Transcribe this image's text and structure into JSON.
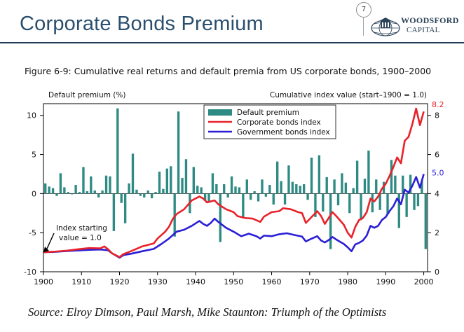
{
  "slide": {
    "title": "Corporate Bonds Premium",
    "page_number": "7",
    "logo": {
      "line1": "WOODSFORD",
      "line2": "CAPITAL",
      "icon": "globe-building-icon"
    },
    "source": "Source: Elroy Dimson, Paul Marsh, Mike Staunton: Triumph of the Optimists"
  },
  "colors": {
    "title": "#2a4f6e",
    "premium_bars": "#2e8b84",
    "corporate_line": "#e8222a",
    "government_line": "#2b1fd6",
    "label_82": "#e8222a",
    "label_50": "#2b1fd6"
  },
  "chart_data": {
    "type": "bar+line",
    "title": "Figure 6-9: Cumulative real returns and default premia from US corporate bonds, 1900–2000",
    "left_axis_label": "Default premium (%)",
    "right_axis_label": "Cumulative index value (start–1900 = 1.0)",
    "x_ticks": [
      "1900",
      "1910",
      "1920",
      "1930",
      "1940",
      "1950",
      "1960",
      "1970",
      "1980",
      "1990",
      "2000"
    ],
    "xlim": [
      1900,
      2001
    ],
    "left_ticks": [
      "10",
      "5",
      "0",
      "-5",
      "-10"
    ],
    "left_ylim": [
      -10,
      11.5
    ],
    "right_ticks": [
      "8",
      "6",
      "4",
      "2",
      "0"
    ],
    "right_ylim": [
      0,
      8.6
    ],
    "grid": false,
    "legend_position": "top-center",
    "legend": [
      "Default premium",
      "Corporate bonds index",
      "Government bonds index"
    ],
    "annotations": [
      {
        "lines": [
          "Index starting",
          "value = 1.0"
        ],
        "points_to_year": 1900,
        "points_to_value": 1.0
      },
      {
        "text": "8.2",
        "series": "Corporate bonds index",
        "year": 2000,
        "value": 8.2
      },
      {
        "text": "5.0",
        "series": "Government bonds index",
        "year": 2000,
        "value": 5.0
      }
    ],
    "premium": {
      "name": "Default premium",
      "years": [
        1900,
        1901,
        1902,
        1903,
        1904,
        1905,
        1906,
        1907,
        1908,
        1909,
        1910,
        1911,
        1912,
        1913,
        1914,
        1915,
        1916,
        1917,
        1918,
        1919,
        1920,
        1921,
        1922,
        1923,
        1924,
        1925,
        1926,
        1927,
        1928,
        1929,
        1930,
        1931,
        1932,
        1933,
        1934,
        1935,
        1936,
        1937,
        1938,
        1939,
        1940,
        1941,
        1942,
        1943,
        1944,
        1945,
        1946,
        1947,
        1948,
        1949,
        1950,
        1951,
        1952,
        1953,
        1954,
        1955,
        1956,
        1957,
        1958,
        1959,
        1960,
        1961,
        1962,
        1963,
        1964,
        1965,
        1966,
        1967,
        1968,
        1969,
        1970,
        1971,
        1972,
        1973,
        1974,
        1975,
        1976,
        1977,
        1978,
        1979,
        1980,
        1981,
        1982,
        1983,
        1984,
        1985,
        1986,
        1987,
        1988,
        1989,
        1990,
        1991,
        1992,
        1993,
        1994,
        1995,
        1996,
        1997,
        1998,
        1999,
        2000
      ],
      "values": [
        1.3,
        0.9,
        0.7,
        -0.3,
        2.6,
        0.8,
        0.2,
        -0.1,
        1.1,
        0.2,
        3.4,
        0.3,
        2.2,
        0.4,
        -0.5,
        0.4,
        2.3,
        2.2,
        -4.8,
        10.9,
        -1.2,
        -3.8,
        1.3,
        5.1,
        0.5,
        -0.3,
        -0.5,
        0.4,
        -0.6,
        0.2,
        2.8,
        0.6,
        3.2,
        3.5,
        -5.5,
        10.5,
        2.0,
        4.4,
        -2.5,
        3.4,
        1.0,
        0.8,
        -0.9,
        -1.1,
        2.6,
        1.2,
        -6.2,
        1.2,
        -0.5,
        2.2,
        0.9,
        0.8,
        -3.0,
        1.8,
        -0.8,
        0.3,
        -1.0,
        1.8,
        -0.4,
        1.1,
        -1.4,
        4.1,
        1.6,
        -1.4,
        3.6,
        1.5,
        1.2,
        1.0,
        1.2,
        -0.8,
        4.6,
        -3.0,
        4.9,
        -2.3,
        2.1,
        -7.1,
        1.8,
        -1.5,
        2.6,
        1.4,
        -2.5,
        0.7,
        4.2,
        -3.4,
        1.9,
        5.5,
        -2.4,
        1.8,
        -2.1,
        1.5,
        -2.6,
        4.3,
        2.3,
        -4.4,
        2.3,
        -3.0,
        2.4,
        -2.1,
        -1.6,
        1.6,
        -7.1
      ]
    },
    "corporate": {
      "name": "Corporate bonds index",
      "points": [
        [
          1900,
          1.0
        ],
        [
          1903,
          1.03
        ],
        [
          1906,
          1.08
        ],
        [
          1909,
          1.15
        ],
        [
          1912,
          1.21
        ],
        [
          1915,
          1.2
        ],
        [
          1916,
          1.3
        ],
        [
          1917,
          1.15
        ],
        [
          1918,
          0.95
        ],
        [
          1920,
          0.75
        ],
        [
          1921,
          0.9
        ],
        [
          1923,
          1.05
        ],
        [
          1926,
          1.3
        ],
        [
          1929,
          1.45
        ],
        [
          1930,
          1.7
        ],
        [
          1932,
          2.05
        ],
        [
          1933,
          2.3
        ],
        [
          1934,
          2.7
        ],
        [
          1935,
          2.95
        ],
        [
          1937,
          3.2
        ],
        [
          1939,
          3.65
        ],
        [
          1941,
          3.85
        ],
        [
          1942,
          3.75
        ],
        [
          1943,
          3.55
        ],
        [
          1945,
          3.65
        ],
        [
          1946,
          3.45
        ],
        [
          1948,
          3.2
        ],
        [
          1950,
          3.05
        ],
        [
          1951,
          2.85
        ],
        [
          1953,
          2.75
        ],
        [
          1955,
          2.72
        ],
        [
          1957,
          2.55
        ],
        [
          1958,
          2.82
        ],
        [
          1960,
          3.05
        ],
        [
          1962,
          3.1
        ],
        [
          1963,
          3.25
        ],
        [
          1965,
          3.2
        ],
        [
          1967,
          3.05
        ],
        [
          1968,
          3.0
        ],
        [
          1969,
          2.5
        ],
        [
          1970,
          2.7
        ],
        [
          1972,
          3.1
        ],
        [
          1973,
          2.85
        ],
        [
          1974,
          2.45
        ],
        [
          1975,
          2.75
        ],
        [
          1976,
          3.05
        ],
        [
          1977,
          2.85
        ],
        [
          1979,
          2.4
        ],
        [
          1980,
          2.0
        ],
        [
          1981,
          1.75
        ],
        [
          1982,
          2.3
        ],
        [
          1983,
          2.65
        ],
        [
          1984,
          2.75
        ],
        [
          1985,
          3.05
        ],
        [
          1986,
          3.75
        ],
        [
          1987,
          3.6
        ],
        [
          1988,
          3.85
        ],
        [
          1989,
          4.25
        ],
        [
          1990,
          4.5
        ],
        [
          1991,
          4.9
        ],
        [
          1992,
          5.35
        ],
        [
          1993,
          5.85
        ],
        [
          1994,
          5.55
        ],
        [
          1995,
          6.7
        ],
        [
          1996,
          6.9
        ],
        [
          1997,
          7.55
        ],
        [
          1998,
          8.35
        ],
        [
          1999,
          7.5
        ],
        [
          2000,
          8.2
        ]
      ]
    },
    "government": {
      "name": "Government bonds index",
      "points": [
        [
          1900,
          1.0
        ],
        [
          1903,
          1.02
        ],
        [
          1906,
          1.06
        ],
        [
          1909,
          1.09
        ],
        [
          1912,
          1.12
        ],
        [
          1915,
          1.14
        ],
        [
          1917,
          1.1
        ],
        [
          1918,
          0.95
        ],
        [
          1920,
          0.72
        ],
        [
          1921,
          0.85
        ],
        [
          1923,
          0.92
        ],
        [
          1926,
          1.05
        ],
        [
          1929,
          1.17
        ],
        [
          1931,
          1.42
        ],
        [
          1933,
          1.7
        ],
        [
          1935,
          2.05
        ],
        [
          1937,
          2.15
        ],
        [
          1939,
          2.35
        ],
        [
          1941,
          2.6
        ],
        [
          1942,
          2.45
        ],
        [
          1943,
          2.35
        ],
        [
          1944,
          2.5
        ],
        [
          1945,
          2.72
        ],
        [
          1946,
          2.55
        ],
        [
          1948,
          2.25
        ],
        [
          1950,
          2.05
        ],
        [
          1952,
          1.82
        ],
        [
          1954,
          1.95
        ],
        [
          1956,
          1.82
        ],
        [
          1957,
          1.7
        ],
        [
          1958,
          1.85
        ],
        [
          1960,
          1.82
        ],
        [
          1962,
          1.92
        ],
        [
          1964,
          1.97
        ],
        [
          1966,
          1.88
        ],
        [
          1968,
          1.8
        ],
        [
          1969,
          1.55
        ],
        [
          1970,
          1.65
        ],
        [
          1972,
          1.82
        ],
        [
          1973,
          1.6
        ],
        [
          1974,
          1.5
        ],
        [
          1975,
          1.62
        ],
        [
          1976,
          1.78
        ],
        [
          1977,
          1.65
        ],
        [
          1979,
          1.42
        ],
        [
          1980,
          1.25
        ],
        [
          1981,
          1.05
        ],
        [
          1982,
          1.4
        ],
        [
          1983,
          1.48
        ],
        [
          1984,
          1.6
        ],
        [
          1985,
          1.85
        ],
        [
          1986,
          2.35
        ],
        [
          1987,
          2.25
        ],
        [
          1988,
          2.35
        ],
        [
          1989,
          2.65
        ],
        [
          1990,
          2.8
        ],
        [
          1991,
          3.1
        ],
        [
          1992,
          3.35
        ],
        [
          1993,
          3.75
        ],
        [
          1994,
          3.45
        ],
        [
          1995,
          4.2
        ],
        [
          1996,
          4.05
        ],
        [
          1997,
          4.4
        ],
        [
          1998,
          4.85
        ],
        [
          1999,
          4.3
        ],
        [
          2000,
          5.0
        ]
      ]
    }
  }
}
